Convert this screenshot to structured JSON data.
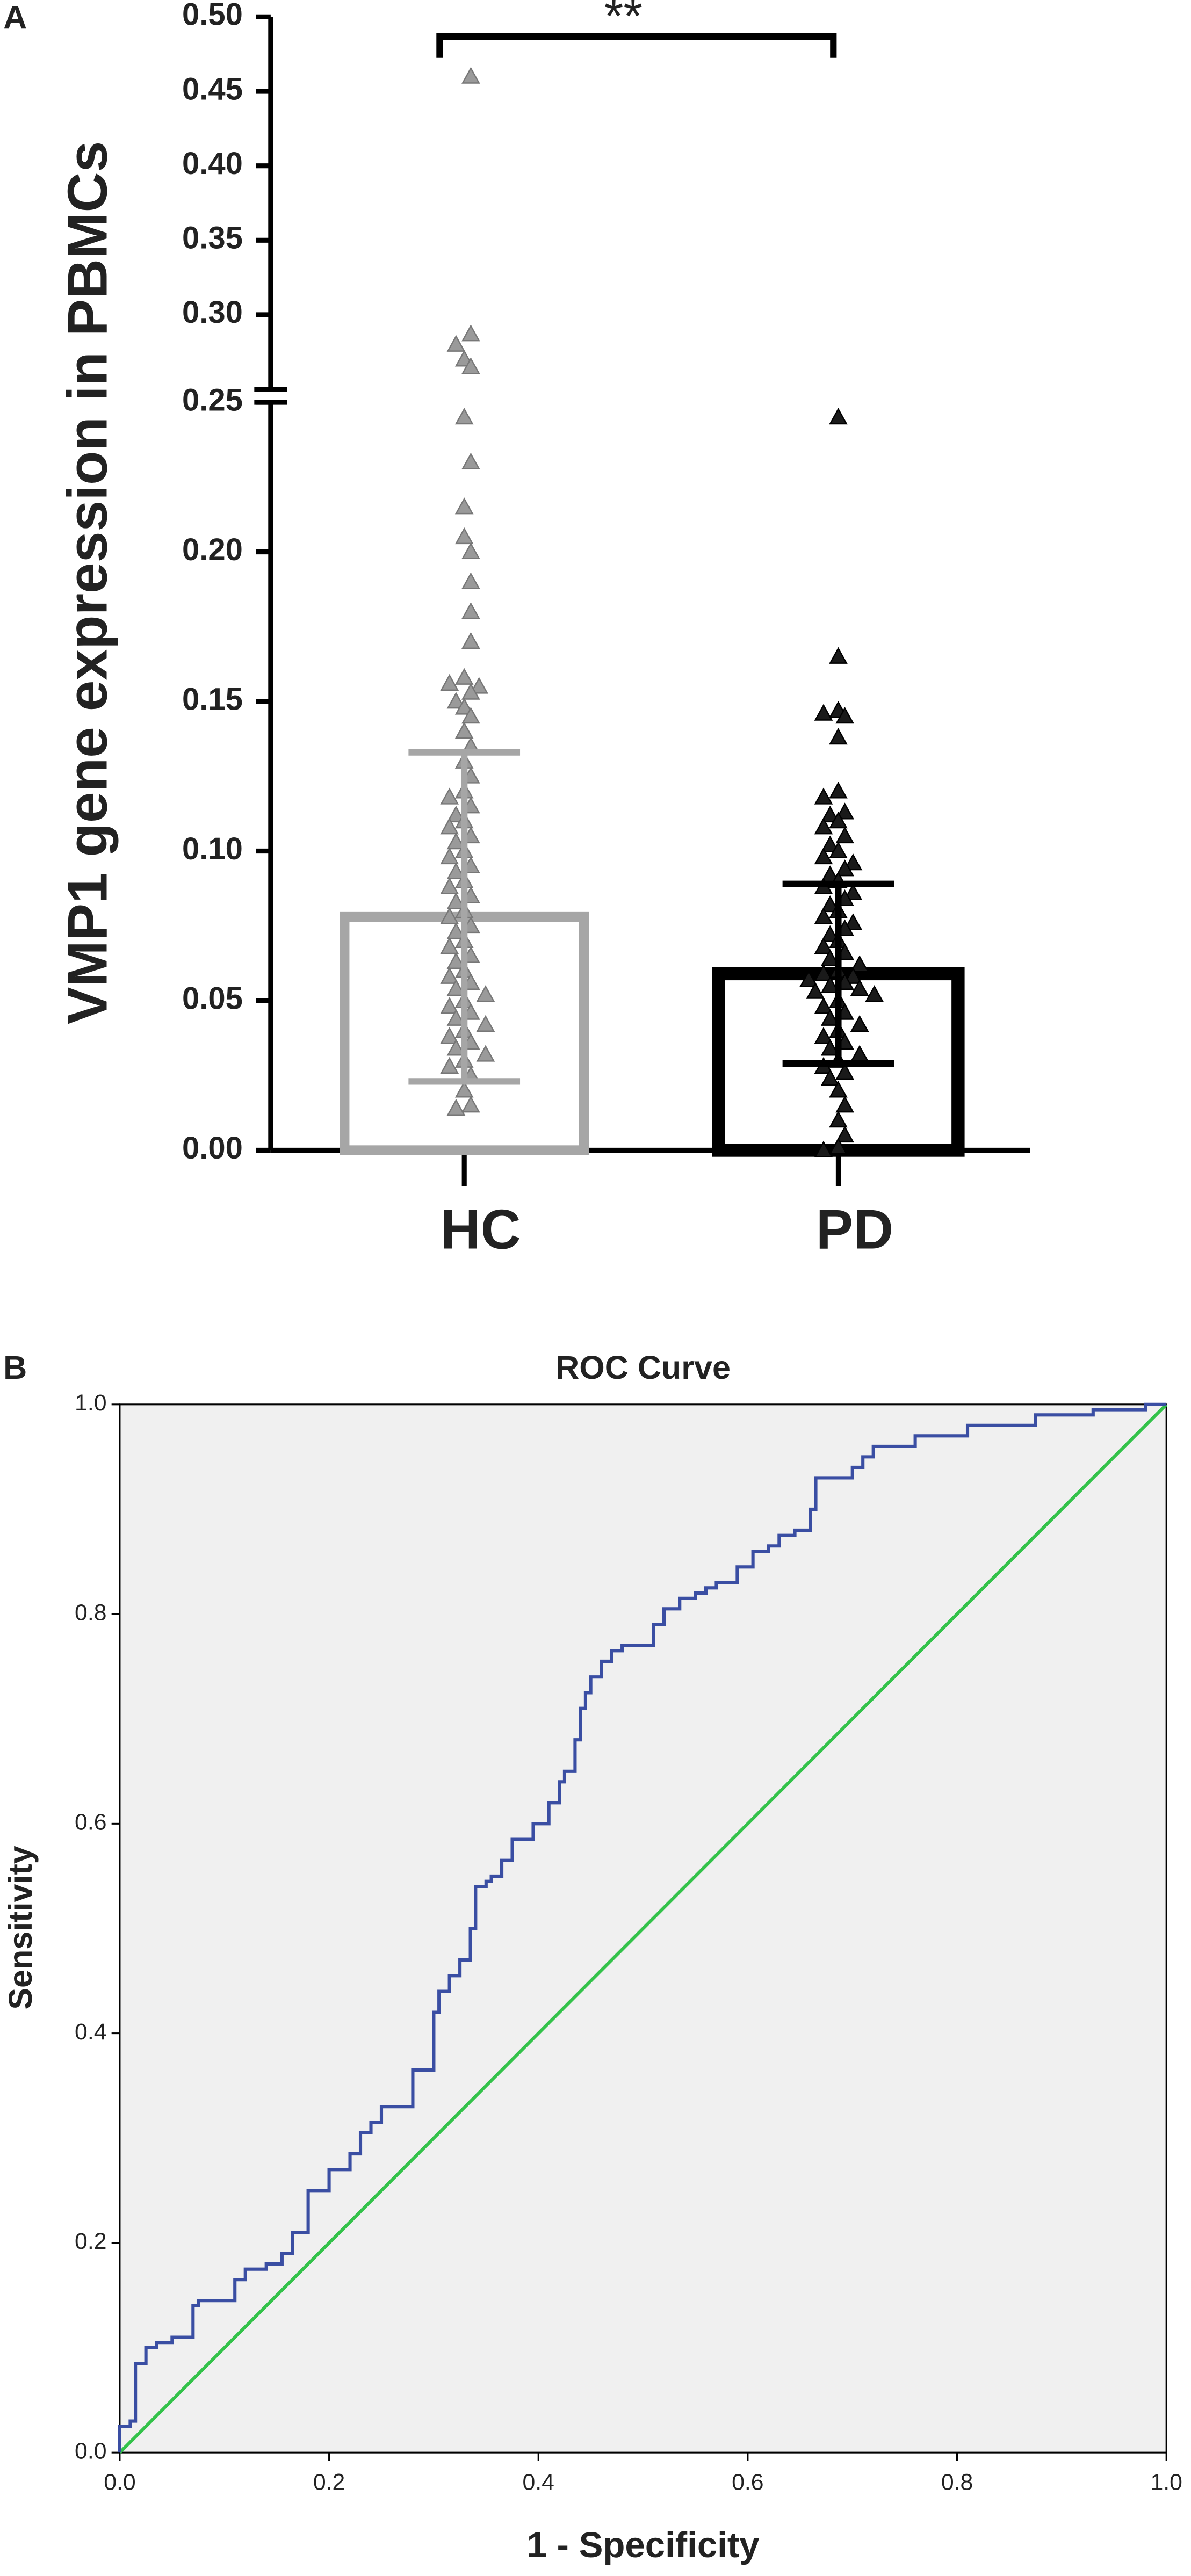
{
  "chart_data": [
    {
      "type": "bar",
      "label": "A",
      "ylabel": "VMP1 gene expression in PBMCs",
      "annotation": "**",
      "categories": [
        "HC",
        "PD"
      ],
      "values": [
        0.078,
        0.059
      ],
      "errors": [
        0.055,
        0.03
      ],
      "colors": [
        "#a6a6a6",
        "#000000"
      ],
      "ylim": [
        0,
        0.5
      ],
      "y_break": 0.25,
      "yticks": [
        {
          "value": 0,
          "label": "0.00"
        },
        {
          "value": 0.05,
          "label": "0.05"
        },
        {
          "value": 0.1,
          "label": "0.10"
        },
        {
          "value": 0.15,
          "label": "0.15"
        },
        {
          "value": 0.2,
          "label": "0.20"
        },
        {
          "value": 0.25,
          "label": "0.25"
        },
        {
          "value": 0.3,
          "label": "0.30"
        },
        {
          "value": 0.35,
          "label": "0.35"
        },
        {
          "value": 0.4,
          "label": "0.40"
        },
        {
          "value": 0.45,
          "label": "0.45"
        },
        {
          "value": 0.5,
          "label": "0.50"
        }
      ],
      "points": [
        {
          "name": "HC",
          "color": "#9a9a9a",
          "values": [
            0.46,
            0.287,
            0.28,
            0.27,
            0.265,
            0.245,
            0.23,
            0.215,
            0.205,
            0.2,
            0.19,
            0.18,
            0.17,
            0.158,
            0.156,
            0.155,
            0.153,
            0.15,
            0.148,
            0.145,
            0.14,
            0.135,
            0.13,
            0.125,
            0.12,
            0.118,
            0.115,
            0.112,
            0.11,
            0.108,
            0.105,
            0.103,
            0.1,
            0.098,
            0.095,
            0.093,
            0.09,
            0.088,
            0.085,
            0.083,
            0.08,
            0.078,
            0.075,
            0.073,
            0.07,
            0.068,
            0.065,
            0.063,
            0.06,
            0.058,
            0.056,
            0.054,
            0.052,
            0.05,
            0.048,
            0.046,
            0.044,
            0.042,
            0.04,
            0.038,
            0.036,
            0.034,
            0.032,
            0.03,
            0.028,
            0.025,
            0.02,
            0.015,
            0.014
          ]
        },
        {
          "name": "PD",
          "color": "#1a1a1a",
          "values": [
            0.245,
            0.165,
            0.147,
            0.146,
            0.145,
            0.138,
            0.12,
            0.118,
            0.113,
            0.112,
            0.11,
            0.108,
            0.105,
            0.102,
            0.1,
            0.098,
            0.096,
            0.094,
            0.092,
            0.09,
            0.088,
            0.086,
            0.084,
            0.082,
            0.08,
            0.078,
            0.076,
            0.074,
            0.072,
            0.07,
            0.068,
            0.066,
            0.064,
            0.062,
            0.06,
            0.059,
            0.058,
            0.057,
            0.056,
            0.055,
            0.054,
            0.053,
            0.052,
            0.05,
            0.048,
            0.046,
            0.044,
            0.042,
            0.04,
            0.038,
            0.036,
            0.034,
            0.032,
            0.03,
            0.028,
            0.026,
            0.024,
            0.02,
            0.015,
            0.01,
            0.005,
            0.001,
            0
          ]
        }
      ]
    },
    {
      "type": "line",
      "label": "B",
      "title": "ROC Curve",
      "xlabel": "1 - Specificity",
      "ylabel": "Sensitivity",
      "xlim": [
        0,
        1
      ],
      "ylim": [
        0,
        1
      ],
      "background": "#f0f0f0",
      "xticks": [
        {
          "value": 0,
          "label": "0.0"
        },
        {
          "value": 0.2,
          "label": "0.2"
        },
        {
          "value": 0.4,
          "label": "0.4"
        },
        {
          "value": 0.6,
          "label": "0.6"
        },
        {
          "value": 0.8,
          "label": "0.8"
        },
        {
          "value": 1,
          "label": "1.0"
        }
      ],
      "yticks": [
        {
          "value": 0,
          "label": "0.0"
        },
        {
          "value": 0.2,
          "label": "0.2"
        },
        {
          "value": 0.4,
          "label": "0.4"
        },
        {
          "value": 0.6,
          "label": "0.6"
        },
        {
          "value": 0.8,
          "label": "0.8"
        },
        {
          "value": 1,
          "label": "1.0"
        }
      ],
      "series": [
        {
          "color": "#3a4ea3",
          "x": [
            0,
            0,
            0.01,
            0.01,
            0.015,
            0.015,
            0.025,
            0.025,
            0.035,
            0.035,
            0.05,
            0.05,
            0.07,
            0.07,
            0.075,
            0.075,
            0.11,
            0.11,
            0.12,
            0.12,
            0.14,
            0.14,
            0.155,
            0.155,
            0.165,
            0.165,
            0.18,
            0.18,
            0.2,
            0.2,
            0.22,
            0.22,
            0.23,
            0.23,
            0.24,
            0.24,
            0.25,
            0.25,
            0.28,
            0.28,
            0.3,
            0.3,
            0.305,
            0.305,
            0.315,
            0.315,
            0.325,
            0.325,
            0.335,
            0.335,
            0.34,
            0.34,
            0.35,
            0.35,
            0.355,
            0.355,
            0.365,
            0.365,
            0.375,
            0.375,
            0.395,
            0.395,
            0.41,
            0.41,
            0.42,
            0.42,
            0.425,
            0.425,
            0.435,
            0.435,
            0.44,
            0.44,
            0.445,
            0.445,
            0.45,
            0.45,
            0.46,
            0.46,
            0.47,
            0.47,
            0.48,
            0.48,
            0.51,
            0.51,
            0.52,
            0.52,
            0.535,
            0.535,
            0.55,
            0.55,
            0.56,
            0.56,
            0.57,
            0.57,
            0.59,
            0.59,
            0.605,
            0.605,
            0.62,
            0.62,
            0.63,
            0.63,
            0.645,
            0.645,
            0.66,
            0.66,
            0.665,
            0.665,
            0.7,
            0.7,
            0.71,
            0.71,
            0.72,
            0.72,
            0.76,
            0.76,
            0.81,
            0.81,
            0.875,
            0.875,
            0.93,
            0.93,
            0.98,
            0.98,
            1
          ],
          "values": [
            0,
            0.025,
            0.025,
            0.03,
            0.03,
            0.085,
            0.085,
            0.1,
            0.1,
            0.105,
            0.105,
            0.11,
            0.11,
            0.14,
            0.14,
            0.145,
            0.145,
            0.165,
            0.165,
            0.175,
            0.175,
            0.18,
            0.18,
            0.19,
            0.19,
            0.21,
            0.21,
            0.25,
            0.25,
            0.27,
            0.27,
            0.285,
            0.285,
            0.305,
            0.305,
            0.315,
            0.315,
            0.33,
            0.33,
            0.365,
            0.365,
            0.42,
            0.42,
            0.44,
            0.44,
            0.455,
            0.455,
            0.47,
            0.47,
            0.5,
            0.5,
            0.54,
            0.54,
            0.545,
            0.545,
            0.55,
            0.55,
            0.565,
            0.565,
            0.585,
            0.585,
            0.6,
            0.6,
            0.62,
            0.62,
            0.64,
            0.64,
            0.65,
            0.65,
            0.68,
            0.68,
            0.71,
            0.71,
            0.725,
            0.725,
            0.74,
            0.74,
            0.755,
            0.755,
            0.765,
            0.765,
            0.77,
            0.77,
            0.79,
            0.79,
            0.805,
            0.805,
            0.815,
            0.815,
            0.82,
            0.82,
            0.825,
            0.825,
            0.83,
            0.83,
            0.845,
            0.845,
            0.86,
            0.86,
            0.865,
            0.865,
            0.875,
            0.875,
            0.88,
            0.88,
            0.9,
            0.9,
            0.93,
            0.93,
            0.94,
            0.94,
            0.95,
            0.95,
            0.96,
            0.96,
            0.97,
            0.97,
            0.98,
            0.98,
            0.99,
            0.99,
            0.995,
            0.995,
            1,
            1
          ]
        },
        {
          "color": "#33c24a",
          "x": [
            0,
            1
          ],
          "values": [
            0,
            1
          ]
        }
      ]
    }
  ]
}
